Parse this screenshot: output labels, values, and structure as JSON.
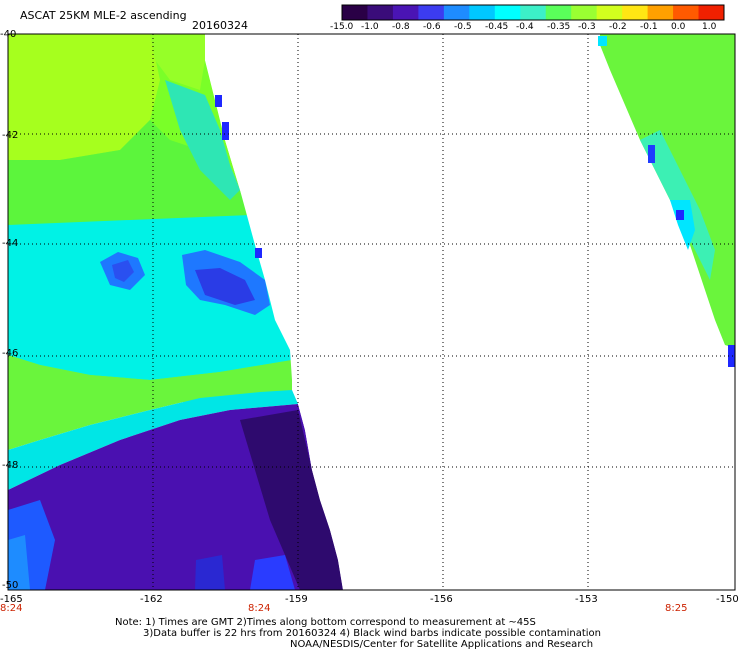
{
  "header": {
    "title": "ASCAT 25KM MLE-2 ascending",
    "date": "20160324"
  },
  "colorbar": {
    "labels": [
      "-15.0",
      "-1.0",
      "-0.8",
      "-0.6",
      "-0.5",
      "-0.45",
      "-0.4",
      "-0.35",
      "-0.3",
      "-0.2",
      "-0.1",
      "0.0",
      "1.0"
    ],
    "colors": [
      "#2a0046",
      "#3a0c7a",
      "#4a14b4",
      "#3c3cf0",
      "#1e8cff",
      "#00c8ff",
      "#00ffff",
      "#3cf0c8",
      "#5aff5a",
      "#9aff32",
      "#d2ff1e",
      "#ffe614",
      "#ffa000",
      "#ff5a00",
      "#f02000"
    ]
  },
  "axes": {
    "lat_labels": [
      "-40",
      "-42",
      "-44",
      "-46",
      "-48",
      "-50"
    ],
    "lon_labels": [
      "-165",
      "-162",
      "-159",
      "-156",
      "-153",
      "-150"
    ],
    "time_labels": [
      "8:24",
      "8:24",
      "8:25"
    ]
  },
  "notes": {
    "line1": "Note: 1) Times are GMT 2)Times along bottom correspond to measurement at ~45S",
    "line2": "3)Data buffer is 22 hrs from 20160324 4) Black wind barbs indicate possible contamination",
    "line3": "NOAA/NESDIS/Center for Satellite Applications and Research"
  },
  "style": {
    "grid_color": "#000000",
    "time_label_color": "#cc2200",
    "nodata_color": "#ffffff",
    "grid": true
  }
}
